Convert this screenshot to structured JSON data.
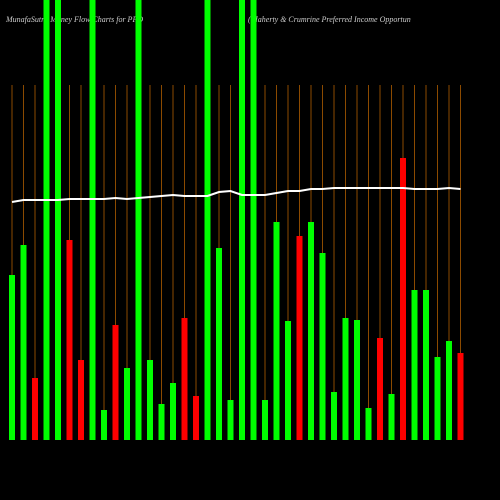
{
  "chart_data": {
    "type": "bar",
    "title": "MunafaSutra  Money Flow  Charts for PFO",
    "subtitle": "(Flaherty & Crumrine  Preferred Income  Opportun",
    "categories": [
      null,
      null,
      null,
      null,
      null,
      null,
      null,
      null,
      null,
      null,
      null,
      null,
      null,
      null,
      null,
      null,
      null,
      null,
      null,
      null,
      null,
      null,
      null,
      null,
      null,
      null,
      null,
      null,
      null,
      null,
      null,
      null,
      null,
      null,
      null,
      null,
      null,
      null,
      null,
      null
    ],
    "series": [
      {
        "values": [
          165,
          195,
          62,
          440,
          440,
          200,
          80,
          440,
          30,
          115,
          72,
          440,
          80,
          36,
          57,
          122,
          44,
          440,
          192,
          40,
          440,
          440,
          40,
          218,
          119,
          204,
          218,
          187,
          48,
          122,
          120,
          32,
          102,
          46,
          282,
          150,
          150,
          83,
          99,
          87
        ],
        "colors": [
          "#00ff00",
          "#00ff00",
          "#ff0000",
          "#00ff00",
          "#00ff00",
          "#ff0000",
          "#ff0000",
          "#00ff00",
          "#00ff00",
          "#ff0000",
          "#00ff00",
          "#00ff00",
          "#00ff00",
          "#00ff00",
          "#00ff00",
          "#ff0000",
          "#ff0000",
          "#00ff00",
          "#00ff00",
          "#00ff00",
          "#00ff00",
          "#00ff00",
          "#00ff00",
          "#00ff00",
          "#00ff00",
          "#ff0000",
          "#00ff00",
          "#00ff00",
          "#00ff00",
          "#00ff00",
          "#00ff00",
          "#00ff00",
          "#ff0000",
          "#00ff00",
          "#ff0000",
          "#00ff00",
          "#00ff00",
          "#00ff00",
          "#00ff00",
          "#ff0000"
        ]
      },
      {
        "type": "line",
        "color": "#ffffff",
        "values": [
          238,
          240,
          240,
          240,
          240,
          241,
          241,
          241,
          241,
          242,
          241,
          242,
          243,
          244,
          245,
          244,
          244,
          244,
          248,
          249,
          245,
          245,
          245,
          247,
          249,
          249,
          251,
          251,
          252,
          252,
          252,
          252,
          252,
          252,
          252,
          251,
          251,
          251,
          252,
          251
        ]
      }
    ],
    "ylim": [
      0,
      440
    ],
    "grid": true,
    "grid_color": "#8b4a00"
  }
}
